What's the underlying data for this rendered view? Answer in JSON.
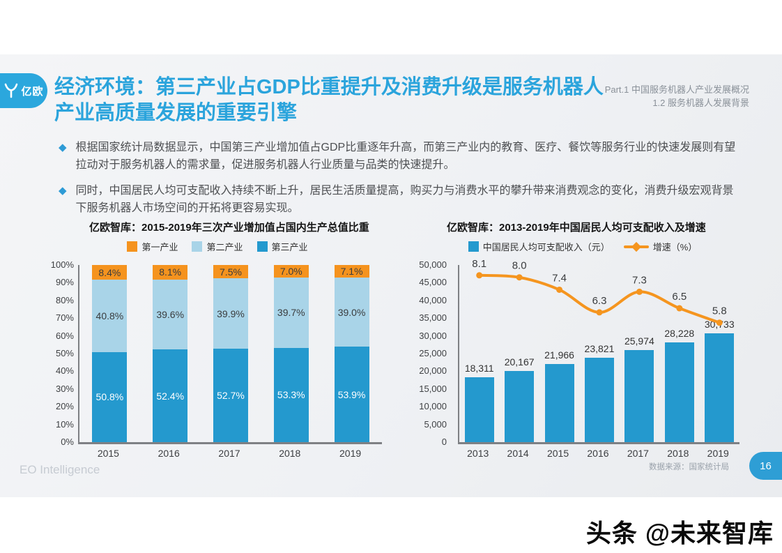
{
  "header": {
    "logo_text": "亿欧",
    "title_line1": "经济环境：第三产业占GDP比重提升及消费升级是服务机器人",
    "title_line2": "产业高质量发展的重要引擎",
    "part_line1": "Part.1 中国服务机器人产业发展概况",
    "part_line2": "1.2 服务机器人发展背景"
  },
  "bullets": [
    {
      "text": "根据国家统计局数据显示，中国第三产业增加值占GDP比重逐年升高，而第三产业内的教育、医疗、餐饮等服务行业的快速发展则有望拉动对于服务机器人的需求量，促进服务机器人行业质量与品类的快速提升。"
    },
    {
      "text": "同时，中国居民人均可支配收入持续不断上升，居民生活质量提高，购买力与消费水平的攀升带来消费观念的变化，消费升级宏观背景下服务机器人市场空间的开拓将更容易实现。"
    }
  ],
  "colors": {
    "accent_blue": "#2ba4dc",
    "bar_blue": "#2499ce",
    "light_blue": "#a9d4e8",
    "orange": "#f5931e",
    "badge_blue": "#2e9ed5"
  },
  "chart_data": [
    {
      "type": "bar",
      "stacked": true,
      "title": "亿欧智库：2015-2019年三次产业增加值占国内生产总值比重",
      "categories": [
        "2015",
        "2016",
        "2017",
        "2018",
        "2019"
      ],
      "series": [
        {
          "name": "第三产业",
          "color": "#2499ce",
          "text_color": "#ffffff",
          "values": [
            50.8,
            52.4,
            52.7,
            53.3,
            53.9
          ]
        },
        {
          "name": "第二产业",
          "color": "#a9d4e8",
          "text_color": "#3a3c3e",
          "values": [
            40.8,
            39.6,
            39.9,
            39.7,
            39.0
          ]
        },
        {
          "name": "第一产业",
          "color": "#f5931e",
          "text_color": "#3a3c3e",
          "values": [
            8.4,
            8.1,
            7.5,
            7.0,
            7.1
          ]
        }
      ],
      "y_ticks": [
        "100%",
        "90%",
        "80%",
        "70%",
        "60%",
        "50%",
        "40%",
        "30%",
        "20%",
        "10%",
        "0%"
      ],
      "ylim": [
        0,
        100
      ],
      "grid": false,
      "legend_position": "top"
    },
    {
      "type": "bar+line",
      "title": "亿欧智库：2013-2019年中国居民人均可支配收入及增速",
      "categories": [
        "2013",
        "2014",
        "2015",
        "2016",
        "2017",
        "2018",
        "2019"
      ],
      "bar_series": {
        "name": "中国居民人均可支配收入（元）",
        "color": "#2499ce",
        "values": [
          18311,
          20167,
          21966,
          23821,
          25974,
          28228,
          30733
        ],
        "labels": [
          "18,311",
          "20,167",
          "21,966",
          "23,821",
          "25,974",
          "28,228",
          "30,733"
        ]
      },
      "line_series": {
        "name": "增速（%）",
        "color": "#f5951f",
        "values": [
          8.1,
          8.0,
          7.4,
          6.3,
          7.3,
          6.5,
          5.8
        ],
        "labels": [
          "8.1",
          "8.0",
          "7.4",
          "6.3",
          "7.3",
          "6.5",
          "5.8"
        ]
      },
      "y_ticks": [
        "50,000",
        "45,000",
        "40,000",
        "35,000",
        "30,000",
        "25,000",
        "20,000",
        "15,000",
        "10,000",
        "5,000",
        "0"
      ],
      "ylim": [
        0,
        50000
      ],
      "line_axis_max": 8.6,
      "grid": false,
      "legend_position": "top"
    }
  ],
  "footer": {
    "brand": "EO Intelligence",
    "source": "数据来源：国家统计局",
    "page": "16"
  },
  "watermark": {
    "text": "头条 @未来智库"
  }
}
